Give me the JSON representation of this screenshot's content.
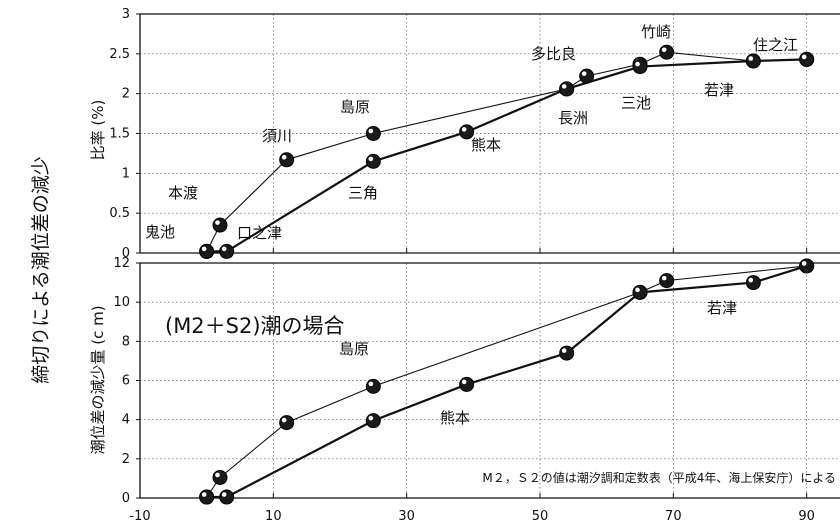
{
  "figure": {
    "left_title": "締切りによる潮位差の減少",
    "footnote": "M２，Ｓ２の値は潮汐調和定数表（平成4年、海上保安庁）による"
  },
  "chart_data": [
    {
      "type": "line",
      "ylabel": "比率 (%)",
      "xlim": [
        -10,
        95
      ],
      "ylim": [
        0,
        3
      ],
      "xticks": [
        "-10",
        "10",
        "30",
        "50",
        "70",
        "90"
      ],
      "yticks": [
        "0",
        "0.5",
        "1",
        "1.5",
        "2",
        "2.5",
        "3"
      ],
      "grid": true,
      "series": [
        {
          "x": [
            0,
            2,
            12,
            25,
            54,
            57,
            65,
            69,
            82,
            90
          ],
          "y": [
            0.02,
            0.35,
            1.17,
            1.5,
            2.06,
            2.22,
            2.37,
            2.52,
            2.41,
            2.43
          ]
        },
        {
          "x": [
            0,
            3,
            25,
            39,
            54,
            65,
            82,
            90
          ],
          "y": [
            0.02,
            0.02,
            1.15,
            1.52,
            2.06,
            2.34,
            2.41,
            2.43
          ]
        }
      ],
      "annotations": [
        "鬼池",
        "本渡",
        "口之津",
        "須川",
        "島原",
        "三角",
        "熊本",
        "多比良",
        "長洲",
        "三池",
        "竹崎",
        "若津",
        "住之江"
      ]
    },
    {
      "type": "line",
      "ylabel": "潮位差の減少量 (c m)",
      "xlim": [
        -10,
        95
      ],
      "ylim": [
        0,
        12
      ],
      "xticks": [
        "-10",
        "10",
        "30",
        "50",
        "70",
        "90"
      ],
      "yticks": [
        "0",
        "2",
        "4",
        "6",
        "8",
        "10",
        "12"
      ],
      "grid": true,
      "series": [
        {
          "x": [
            0,
            2,
            12,
            25,
            65,
            69,
            90
          ],
          "y": [
            0.05,
            1.05,
            3.85,
            5.7,
            10.5,
            11.1,
            11.85
          ]
        },
        {
          "x": [
            0,
            3,
            25,
            39,
            54,
            65,
            82,
            90
          ],
          "y": [
            0.05,
            0.05,
            3.95,
            5.8,
            7.4,
            10.5,
            11.0,
            11.85
          ]
        }
      ],
      "panel_title": "(M2＋S2)潮の場合",
      "annotations": [
        "島原",
        "熊本",
        "若津"
      ]
    }
  ]
}
